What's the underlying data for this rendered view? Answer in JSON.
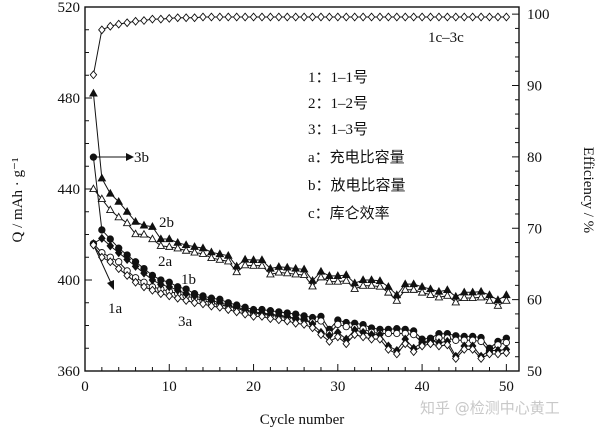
{
  "chart_data": {
    "type": "line",
    "xlabel": "Cycle number",
    "ylabel": "Q / mAh · g⁻¹",
    "ylabel_right": "Efficiency / %",
    "xlim": [
      0,
      51.5
    ],
    "ylim": [
      360,
      520
    ],
    "ylim_right": [
      50,
      101
    ],
    "x_ticks": [
      "0",
      "10",
      "20",
      "30",
      "40",
      "50"
    ],
    "y_ticks": [
      "360",
      "400",
      "440",
      "480",
      "520"
    ],
    "y_ticks_right": [
      "50",
      "60",
      "70",
      "80",
      "90",
      "100"
    ],
    "grid": false,
    "x": [
      1,
      2,
      3,
      4,
      5,
      6,
      7,
      8,
      9,
      10,
      11,
      12,
      13,
      14,
      15,
      16,
      17,
      18,
      19,
      20,
      21,
      22,
      23,
      24,
      25,
      26,
      27,
      28,
      29,
      30,
      31,
      32,
      33,
      34,
      35,
      36,
      37,
      38,
      39,
      40,
      41,
      42,
      43,
      44,
      45,
      46,
      47,
      48,
      49,
      50
    ],
    "series": [
      {
        "name": "2b",
        "axis": "left",
        "marker": "triangle-filled",
        "values": [
          482,
          444.7,
          438,
          434.4,
          430,
          425.6,
          424,
          423.4,
          418,
          418,
          416.4,
          415.4,
          414.6,
          414,
          412.2,
          411.4,
          410.7,
          406,
          409,
          408.8,
          408.8,
          405,
          405.8,
          405.5,
          405,
          404.7,
          399.7,
          403.7,
          401.8,
          401.8,
          402.2,
          398.6,
          400,
          400,
          399.6,
          397,
          393.4,
          398.2,
          398.2,
          397,
          396,
          394.9,
          395.6,
          392.7,
          394.6,
          394.6,
          394.9,
          393.4,
          391.2,
          393.4
        ]
      },
      {
        "name": "2a",
        "axis": "left",
        "marker": "triangle-open",
        "values": [
          440,
          435.6,
          430.8,
          427.6,
          425,
          420.2,
          420,
          418,
          415,
          414.6,
          413.9,
          412.9,
          412.1,
          411.5,
          409.7,
          408.9,
          408.2,
          403.5,
          406.5,
          406.3,
          406.3,
          402.5,
          403.3,
          403,
          402.5,
          402.2,
          397.2,
          401.2,
          399.3,
          399.3,
          399.7,
          396.1,
          397.5,
          397.5,
          397.1,
          394.5,
          390.9,
          395.7,
          395.7,
          394.5,
          393.5,
          392.4,
          393.1,
          390.2,
          392.1,
          392.1,
          392.4,
          390.9,
          388.7,
          390.9
        ]
      },
      {
        "name": "3b",
        "axis": "left",
        "marker": "circle-filled",
        "values": [
          454,
          422,
          418,
          414,
          411,
          408,
          405,
          402,
          400,
          399,
          397,
          396,
          394,
          393,
          392,
          391.5,
          390,
          389,
          388,
          387,
          387,
          386.5,
          386,
          385.5,
          385,
          384.2,
          383.5,
          384,
          378.3,
          382.4,
          381.3,
          381,
          380.4,
          378.9,
          378.3,
          378.3,
          378.6,
          378.3,
          377.6,
          374,
          374.4,
          376.4,
          376.4,
          375.5,
          375.2,
          375.2,
          374.7,
          370,
          373,
          374.4
        ]
      },
      {
        "name": "3a",
        "axis": "left",
        "marker": "circle-open",
        "values": [
          416,
          412,
          410,
          408,
          404,
          401,
          399,
          397,
          396,
          395,
          394,
          393,
          392,
          391,
          390,
          389,
          388.5,
          387.5,
          386.5,
          385.5,
          385,
          384.5,
          384,
          383.5,
          383,
          382.5,
          381.5,
          382,
          376.5,
          380.5,
          379.5,
          379,
          378.5,
          377,
          376.5,
          376.5,
          376.5,
          376.5,
          376,
          372.5,
          372.5,
          374.5,
          374.5,
          373.5,
          373.5,
          373.5,
          373,
          368.5,
          371.5,
          372.5
        ]
      },
      {
        "name": "1b",
        "axis": "left",
        "marker": "diamond-filled",
        "values": [
          416,
          418.3,
          415,
          412,
          409,
          406,
          403,
          400,
          398,
          397,
          395.5,
          394,
          393,
          392,
          391,
          390,
          389,
          388,
          387,
          386,
          385.5,
          385,
          384.5,
          384,
          383,
          382.7,
          380.6,
          377,
          375.6,
          377,
          374,
          378,
          377,
          376,
          376,
          371,
          369,
          374,
          370,
          372.5,
          373.5,
          372.5,
          373,
          366.5,
          371,
          371,
          366.5,
          369,
          369,
          369.5
        ]
      },
      {
        "name": "1a",
        "axis": "left",
        "marker": "diamond-open",
        "values": [
          415.4,
          410,
          408,
          405,
          402,
          399,
          397,
          395.5,
          394,
          393,
          392,
          391,
          390,
          389.5,
          388.5,
          388,
          387,
          386,
          385,
          384,
          384,
          383,
          382.5,
          382,
          381,
          380.5,
          379,
          376,
          373,
          375,
          372,
          376,
          375,
          374,
          374,
          369.5,
          367.5,
          372,
          368.5,
          371,
          372,
          371,
          371.5,
          365.5,
          369.5,
          369.5,
          365.5,
          367.5,
          367.5,
          368
        ]
      },
      {
        "name": "1c–3c",
        "axis": "right",
        "marker": "diamond-open",
        "values": [
          91.5,
          97.8,
          98.3,
          98.6,
          98.8,
          99.0,
          99.1,
          99.3,
          99.3,
          99.4,
          99.5,
          99.5,
          99.5,
          99.6,
          99.6,
          99.6,
          99.6,
          99.6,
          99.6,
          99.6,
          99.6,
          99.6,
          99.6,
          99.6,
          99.6,
          99.6,
          99.6,
          99.6,
          99.6,
          99.6,
          99.6,
          99.6,
          99.6,
          99.6,
          99.6,
          99.6,
          99.6,
          99.6,
          99.6,
          99.6,
          99.6,
          99.6,
          99.6,
          99.6,
          99.6,
          99.6,
          99.6,
          99.6,
          99.6,
          99.6
        ]
      }
    ],
    "legend": [
      "1：1–1号",
      "2：1–2号",
      "3：1–3号",
      "a：充电比容量",
      "b：放电比容量",
      "c：库仑效率"
    ],
    "annotations": {
      "eff": "1c–3c",
      "b3": "3b",
      "b2": "2b",
      "a2": "2a",
      "b1": "1b",
      "a1": "1a",
      "a3": "3a"
    }
  },
  "watermark": "知乎 @检测中心黄工"
}
